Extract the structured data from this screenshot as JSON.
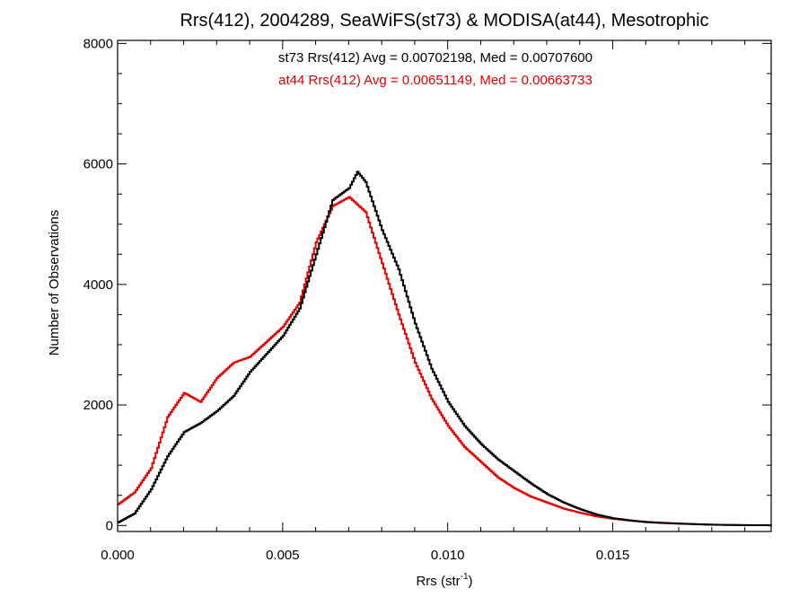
{
  "chart_data": {
    "type": "line",
    "title": "Rrs(412), 2004289, SeaWiFS(st73) & MODISA(at44), Mesotrophic",
    "xlabel": {
      "base": "Rrs (str",
      "superscript": "-1",
      "close": ")"
    },
    "ylabel": "Number of Observations",
    "xlim": [
      0.0,
      0.0198
    ],
    "ylim": [
      -100,
      8050
    ],
    "x_ticks": [
      {
        "value": 0.0,
        "label": "0.000"
      },
      {
        "value": 0.005,
        "label": "0.005"
      },
      {
        "value": 0.01,
        "label": "0.010"
      },
      {
        "value": 0.015,
        "label": "0.015"
      }
    ],
    "y_ticks": [
      {
        "value": 0,
        "label": "0"
      },
      {
        "value": 2000,
        "label": "2000"
      },
      {
        "value": 4000,
        "label": "4000"
      },
      {
        "value": 6000,
        "label": "6000"
      },
      {
        "value": 8000,
        "label": "8000"
      }
    ],
    "grid": false,
    "legend_position": "top-center",
    "annotations": [
      {
        "text": "st73 Rrs(412) Avg = 0.00702198, Med = 0.00707600",
        "color": "#000000"
      },
      {
        "text": "at44 Rrs(412) Avg = 0.00651149, Med = 0.00663733",
        "color": "#e00000"
      }
    ],
    "series": [
      {
        "color": "#000000",
        "x": [
          0.0,
          0.0005,
          0.001,
          0.0015,
          0.002,
          0.0025,
          0.003,
          0.0035,
          0.004,
          0.0045,
          0.005,
          0.0055,
          0.006,
          0.0065,
          0.007,
          0.00725,
          0.0075,
          0.008,
          0.0085,
          0.009,
          0.0095,
          0.01,
          0.0105,
          0.011,
          0.0115,
          0.012,
          0.0125,
          0.013,
          0.0135,
          0.014,
          0.0145,
          0.015,
          0.0155,
          0.016,
          0.0165,
          0.017,
          0.0175,
          0.018,
          0.0185,
          0.019,
          0.0198
        ],
        "values": [
          50,
          200,
          600,
          1150,
          1550,
          1700,
          1900,
          2150,
          2550,
          2850,
          3150,
          3600,
          4500,
          5400,
          5600,
          5870,
          5700,
          4900,
          4250,
          3350,
          2600,
          2050,
          1650,
          1350,
          1100,
          900,
          700,
          520,
          380,
          270,
          180,
          120,
          85,
          55,
          40,
          30,
          20,
          12,
          8,
          5,
          3
        ]
      },
      {
        "color": "#e00000",
        "x": [
          0.0,
          0.0005,
          0.001,
          0.0015,
          0.002,
          0.0025,
          0.003,
          0.0035,
          0.004,
          0.0045,
          0.005,
          0.0055,
          0.006,
          0.0065,
          0.007,
          0.0075,
          0.008,
          0.0085,
          0.009,
          0.0095,
          0.01,
          0.0105,
          0.011,
          0.0115,
          0.012,
          0.0125,
          0.013,
          0.0135,
          0.014,
          0.0145,
          0.015,
          0.0155,
          0.016,
          0.0165,
          0.017,
          0.0175,
          0.018,
          0.0185,
          0.019,
          0.0198
        ],
        "values": [
          350,
          550,
          950,
          1800,
          2200,
          2050,
          2450,
          2700,
          2800,
          3050,
          3300,
          3700,
          4700,
          5300,
          5450,
          5200,
          4350,
          3500,
          2700,
          2100,
          1650,
          1300,
          1050,
          800,
          620,
          480,
          380,
          280,
          210,
          150,
          110,
          80,
          60,
          45,
          32,
          22,
          14,
          9,
          6,
          3
        ]
      }
    ]
  }
}
